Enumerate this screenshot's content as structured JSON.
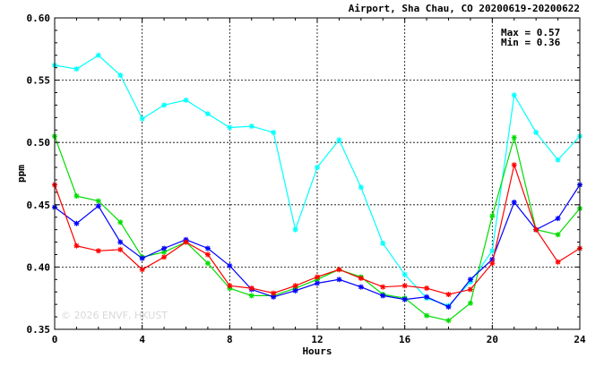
{
  "chart_data": {
    "type": "line",
    "title": "Airport, Sha Chau, CO 20200619-20200622",
    "xlabel": "Hours",
    "ylabel": "ppm",
    "xlim": [
      0,
      24
    ],
    "ylim": [
      0.35,
      0.6
    ],
    "xticks": [
      0,
      4,
      8,
      12,
      16,
      20,
      24
    ],
    "yticks": [
      0.35,
      0.4,
      0.45,
      0.5,
      0.55,
      0.6
    ],
    "grid": true,
    "annotations": [
      "Max = 0.57",
      "Min = 0.36"
    ],
    "watermark": "© 2026  ENVF, HKUST",
    "x": [
      0,
      1,
      2,
      3,
      4,
      5,
      6,
      7,
      8,
      9,
      10,
      11,
      12,
      13,
      14,
      15,
      16,
      17,
      18,
      19,
      20,
      21,
      22,
      23,
      24
    ],
    "series": [
      {
        "color": "#00ffff",
        "values": [
          0.562,
          0.559,
          0.57,
          0.554,
          0.519,
          0.53,
          0.534,
          0.523,
          0.512,
          0.513,
          0.508,
          0.43,
          0.48,
          0.502,
          0.464,
          0.419,
          0.394,
          0.375,
          0.369,
          0.388,
          0.413,
          0.538,
          0.508,
          0.486,
          0.505
        ]
      },
      {
        "color": "#00dd00",
        "values": [
          0.505,
          0.457,
          0.453,
          0.436,
          0.408,
          0.412,
          0.42,
          0.403,
          0.383,
          0.377,
          0.377,
          0.383,
          0.39,
          0.398,
          0.392,
          0.378,
          0.375,
          0.361,
          0.357,
          0.371,
          0.441,
          0.504,
          0.43,
          0.426,
          0.447
        ]
      },
      {
        "color": "#0000ff",
        "values": [
          0.448,
          0.435,
          0.449,
          0.42,
          0.407,
          0.415,
          0.422,
          0.415,
          0.401,
          0.382,
          0.376,
          0.381,
          0.387,
          0.39,
          0.384,
          0.377,
          0.374,
          0.376,
          0.368,
          0.39,
          0.406,
          0.452,
          0.43,
          0.439,
          0.466
        ]
      },
      {
        "color": "#ff0000",
        "values": [
          0.466,
          0.417,
          0.413,
          0.414,
          0.398,
          0.408,
          0.42,
          0.41,
          0.385,
          0.383,
          0.379,
          0.385,
          0.392,
          0.398,
          0.391,
          0.384,
          0.385,
          0.383,
          0.378,
          0.382,
          0.403,
          0.482,
          0.43,
          0.404,
          0.415
        ]
      }
    ]
  }
}
